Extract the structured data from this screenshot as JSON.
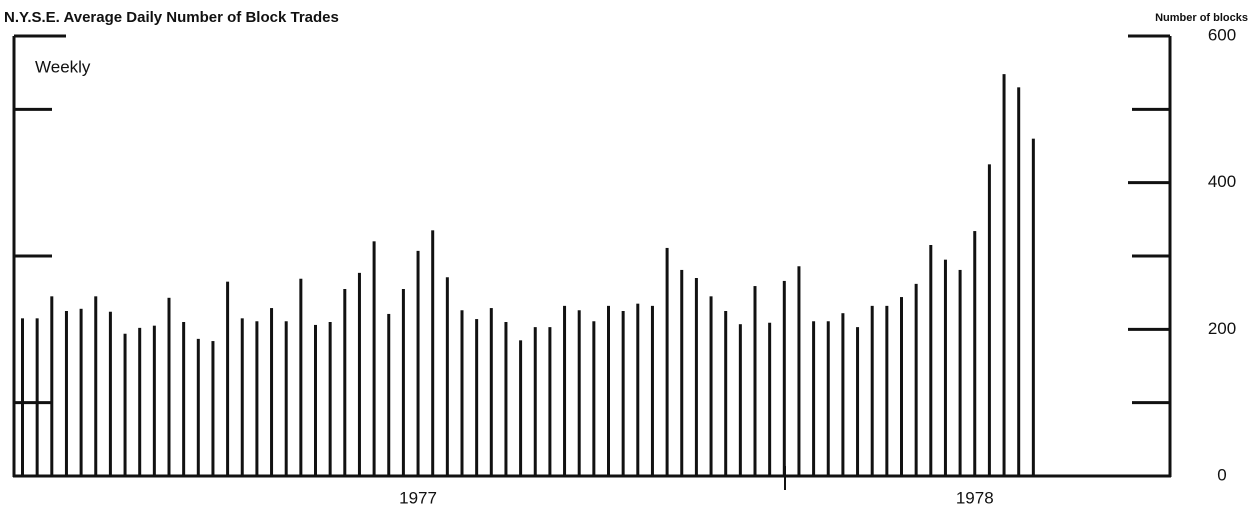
{
  "chart_data": {
    "type": "bar",
    "title": "N.Y.S.E. Average Daily Number of Block Trades",
    "subtitle": "Weekly",
    "y_axis_label": "Number of blocks",
    "color": "#111111",
    "categories": [
      null,
      null,
      null,
      null,
      null,
      null,
      null,
      null,
      null,
      null,
      null,
      null,
      null,
      null,
      null,
      null,
      null,
      null,
      null,
      null,
      null,
      null,
      null,
      null,
      null,
      null,
      null,
      "1977",
      null,
      null,
      null,
      null,
      null,
      null,
      null,
      null,
      null,
      null,
      null,
      null,
      null,
      null,
      null,
      null,
      null,
      null,
      null,
      null,
      null,
      null,
      null,
      null,
      null,
      null,
      null,
      null,
      null,
      null,
      null,
      null,
      null,
      null,
      null,
      null,
      null,
      "1978",
      null,
      null,
      null,
      null
    ],
    "values": [
      215,
      215,
      245,
      225,
      228,
      245,
      224,
      194,
      202,
      205,
      243,
      210,
      187,
      184,
      265,
      215,
      211,
      229,
      211,
      269,
      206,
      210,
      255,
      277,
      320,
      221,
      255,
      307,
      335,
      271,
      226,
      214,
      229,
      210,
      185,
      203,
      203,
      232,
      226,
      211,
      232,
      225,
      235,
      232,
      311,
      281,
      270,
      245,
      225,
      207,
      259,
      209,
      266,
      286,
      211,
      211,
      222,
      203,
      232,
      232,
      244,
      262,
      315,
      295,
      281,
      334,
      425,
      548,
      530,
      460
    ],
    "ylim": [
      0,
      600
    ],
    "yticks": [
      0,
      200,
      400,
      600
    ],
    "yminor": [
      100,
      300,
      500
    ]
  }
}
